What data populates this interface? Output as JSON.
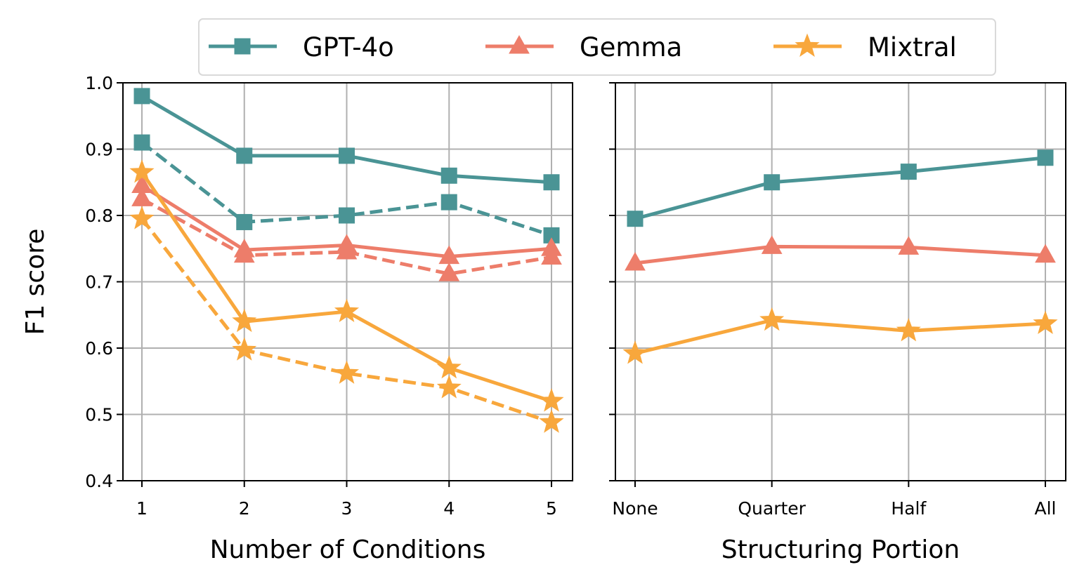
{
  "colors": {
    "GPT-4o": "#4a9495",
    "Gemma": "#ed7d6a",
    "Mixtral": "#f8a73c",
    "grid": "#b0b0b0",
    "axis": "#000000"
  },
  "legend": {
    "items": [
      {
        "name": "GPT-4o",
        "marker": "square"
      },
      {
        "name": "Gemma",
        "marker": "triangle"
      },
      {
        "name": "Mixtral",
        "marker": "star"
      }
    ],
    "placement": "top-center"
  },
  "chart_data": [
    {
      "type": "line",
      "title": "",
      "xlabel": "Number of Conditions",
      "ylabel": "F1 score",
      "categories": [
        "1",
        "2",
        "3",
        "4",
        "5"
      ],
      "ylim": [
        0.4,
        1.0
      ],
      "yticks": [
        "0.4",
        "0.5",
        "0.6",
        "0.7",
        "0.8",
        "0.9",
        "1.0"
      ],
      "grid": true,
      "series": [
        {
          "name": "GPT-4o",
          "style": "solid",
          "marker": "square",
          "values": [
            0.98,
            0.89,
            0.89,
            0.86,
            0.85
          ]
        },
        {
          "name": "GPT-4o",
          "style": "dashed",
          "marker": "square",
          "values": [
            0.91,
            0.79,
            0.8,
            0.82,
            0.77
          ]
        },
        {
          "name": "Gemma",
          "style": "solid",
          "marker": "triangle",
          "values": [
            0.845,
            0.748,
            0.755,
            0.738,
            0.75
          ]
        },
        {
          "name": "Gemma",
          "style": "dashed",
          "marker": "triangle",
          "values": [
            0.825,
            0.74,
            0.745,
            0.712,
            0.737
          ]
        },
        {
          "name": "Mixtral",
          "style": "solid",
          "marker": "star",
          "values": [
            0.865,
            0.64,
            0.655,
            0.57,
            0.52
          ]
        },
        {
          "name": "Mixtral",
          "style": "dashed",
          "marker": "star",
          "values": [
            0.795,
            0.597,
            0.562,
            0.54,
            0.488
          ]
        }
      ]
    },
    {
      "type": "line",
      "title": "",
      "xlabel": "Structuring Portion",
      "ylabel": "",
      "categories": [
        "None",
        "Quarter",
        "Half",
        "All"
      ],
      "ylim": [
        0.4,
        1.0
      ],
      "grid": true,
      "series": [
        {
          "name": "GPT-4o",
          "style": "solid",
          "marker": "square",
          "values": [
            0.795,
            0.85,
            0.866,
            0.887
          ]
        },
        {
          "name": "Gemma",
          "style": "solid",
          "marker": "triangle",
          "values": [
            0.728,
            0.753,
            0.752,
            0.74
          ]
        },
        {
          "name": "Mixtral",
          "style": "solid",
          "marker": "star",
          "values": [
            0.592,
            0.642,
            0.626,
            0.637
          ]
        }
      ]
    }
  ]
}
